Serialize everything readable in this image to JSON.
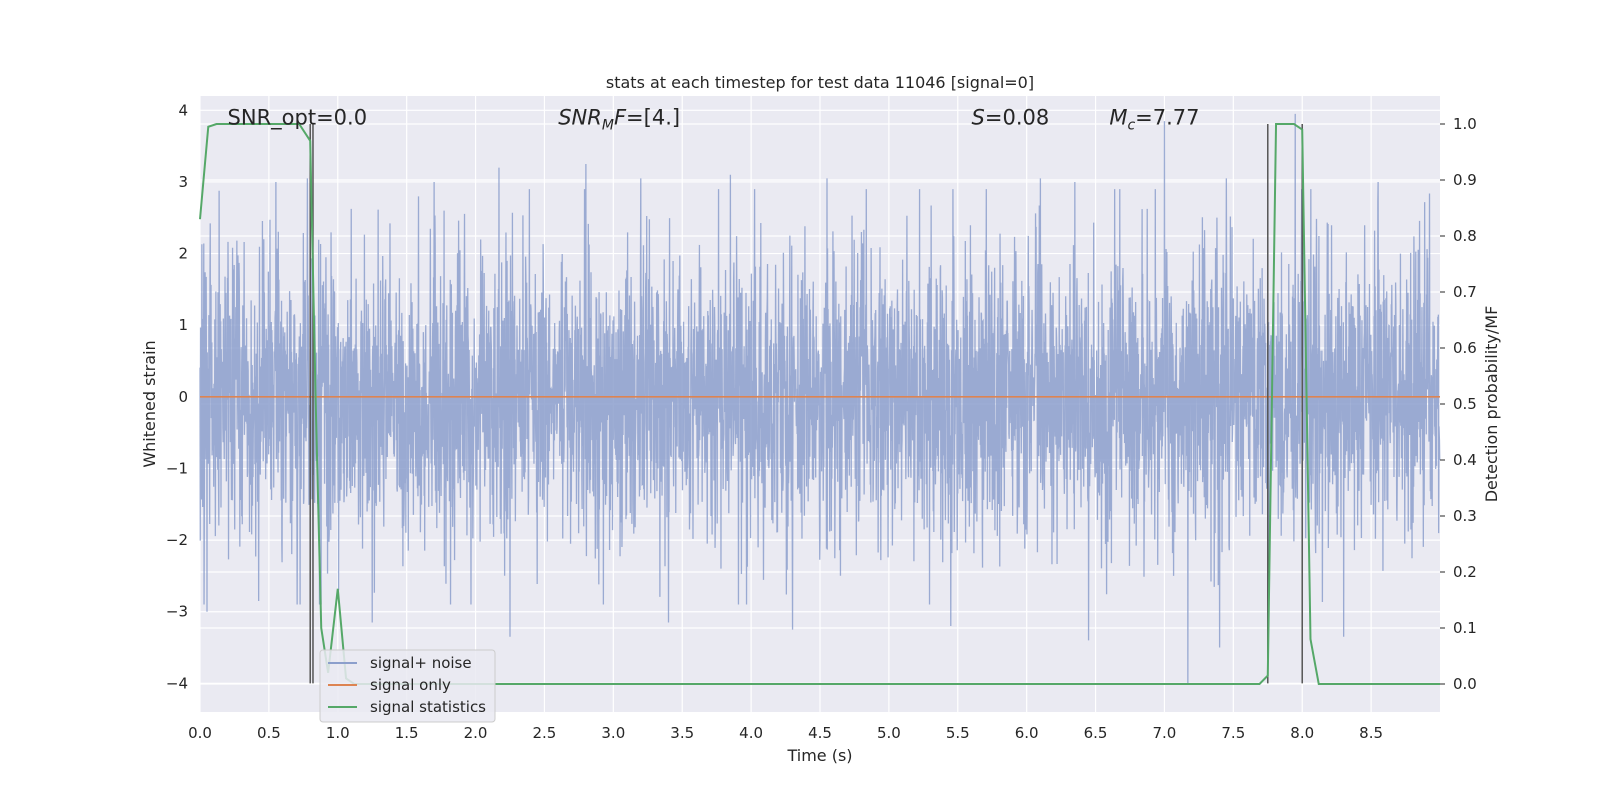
{
  "chart_data": {
    "type": "line",
    "title": "stats at each timestep for test data 11046 [signal=0]",
    "xlabel": "Time (s)",
    "ylabel": "Whitened strain",
    "ylabel_right": "Detection probability/MF",
    "xlim": [
      0,
      9.0
    ],
    "ylim": [
      -4.4,
      4.2
    ],
    "ylim_right": [
      -0.05,
      1.05
    ],
    "x_ticks": [
      0.0,
      0.5,
      1.0,
      1.5,
      2.0,
      2.5,
      3.0,
      3.5,
      4.0,
      4.5,
      5.0,
      5.5,
      6.0,
      6.5,
      7.0,
      7.5,
      8.0,
      8.5
    ],
    "x_tick_labels": [
      "0.0",
      "0.5",
      "1.0",
      "1.5",
      "2.0",
      "2.5",
      "3.0",
      "3.5",
      "4.0",
      "4.5",
      "5.0",
      "5.5",
      "6.0",
      "6.5",
      "7.0",
      "7.5",
      "8.0",
      "8.5"
    ],
    "y_ticks": [
      -4,
      -3,
      -2,
      -1,
      0,
      1,
      2,
      3,
      4
    ],
    "y_tick_labels": [
      "−4",
      "−3",
      "−2",
      "−1",
      "0",
      "1",
      "2",
      "3",
      "4"
    ],
    "y_ticks_right": [
      0.0,
      0.1,
      0.2,
      0.3,
      0.4,
      0.5,
      0.6,
      0.7,
      0.8,
      0.9,
      1.0
    ],
    "y_tick_labels_right": [
      "0.0",
      "0.1",
      "0.2",
      "0.3",
      "0.4",
      "0.5",
      "0.6",
      "0.7",
      "0.8",
      "0.9",
      "1.0"
    ],
    "grid": true,
    "legend_position": "lower-left",
    "annotations": [
      {
        "x": 0.2,
        "y": 3.9,
        "parts": [
          {
            "t": "SNR_opt=0.0"
          }
        ]
      },
      {
        "x": 2.6,
        "y": 3.9,
        "parts": [
          {
            "t": "SNR",
            "i": true
          },
          {
            "t": "M",
            "i": true,
            "sub": true
          },
          {
            "t": "F",
            "i": true
          },
          {
            "t": "=[4.]"
          }
        ]
      },
      {
        "x": 5.6,
        "y": 3.9,
        "parts": [
          {
            "t": "S",
            "i": true
          },
          {
            "t": "=0.08"
          }
        ]
      },
      {
        "x": 6.6,
        "y": 3.9,
        "parts": [
          {
            "t": "M",
            "i": true
          },
          {
            "t": "c",
            "i": true,
            "sub": true
          },
          {
            "t": "=7.77"
          }
        ]
      }
    ],
    "vertical_lines": [
      0.8,
      0.82,
      7.75,
      8.0
    ],
    "series": [
      {
        "name": "signal+ noise",
        "color": "#8c9fcc",
        "axis": "left",
        "kind": "noise",
        "sample_rate": 512,
        "sigma": 1.0,
        "spikes": [
          {
            "x": 0.55,
            "y": 3.0
          },
          {
            "x": 0.78,
            "y": 3.05
          },
          {
            "x": 1.7,
            "y": 3.0
          },
          {
            "x": 2.17,
            "y": 3.2
          },
          {
            "x": 2.8,
            "y": 3.25
          },
          {
            "x": 3.2,
            "y": 3.05
          },
          {
            "x": 3.85,
            "y": 3.1
          },
          {
            "x": 4.55,
            "y": 3.05
          },
          {
            "x": 5.45,
            "y": 3.05
          },
          {
            "x": 6.1,
            "y": 3.05
          },
          {
            "x": 6.35,
            "y": 3.0
          },
          {
            "x": 7.0,
            "y": 3.85
          },
          {
            "x": 7.45,
            "y": 3.05
          },
          {
            "x": 7.95,
            "y": 3.95
          },
          {
            "x": 8.55,
            "y": 3.0
          },
          {
            "x": 0.05,
            "y": -3.0
          },
          {
            "x": 1.25,
            "y": -3.15
          },
          {
            "x": 2.25,
            "y": -3.35
          },
          {
            "x": 3.4,
            "y": -3.15
          },
          {
            "x": 4.3,
            "y": -3.25
          },
          {
            "x": 5.45,
            "y": -3.2
          },
          {
            "x": 6.45,
            "y": -3.4
          },
          {
            "x": 7.17,
            "y": -4.0
          },
          {
            "x": 7.4,
            "y": -3.5
          },
          {
            "x": 8.3,
            "y": -3.35
          }
        ]
      },
      {
        "name": "signal only",
        "color": "#dd8452",
        "axis": "left",
        "x": [
          0.0,
          9.0
        ],
        "y": [
          0.0,
          0.0
        ]
      },
      {
        "name": "signal statistics",
        "color": "#55a868",
        "axis": "right",
        "x": [
          0.0,
          0.06,
          0.12,
          0.25,
          0.5,
          0.65,
          0.72,
          0.8,
          0.84,
          0.88,
          0.93,
          1.0,
          1.06,
          1.12,
          2.0,
          4.0,
          6.0,
          7.0,
          7.69,
          7.75,
          7.81,
          7.87,
          7.94,
          8.0,
          8.06,
          8.12,
          9.0
        ],
        "y": [
          0.83,
          0.995,
          1.0,
          1.0,
          1.0,
          1.0,
          1.0,
          0.97,
          0.5,
          0.1,
          0.02,
          0.17,
          0.01,
          0.0,
          0.0,
          0.0,
          0.0,
          0.0,
          0.0,
          0.015,
          1.0,
          1.0,
          1.0,
          0.99,
          0.08,
          0.0,
          0.0
        ]
      }
    ]
  }
}
